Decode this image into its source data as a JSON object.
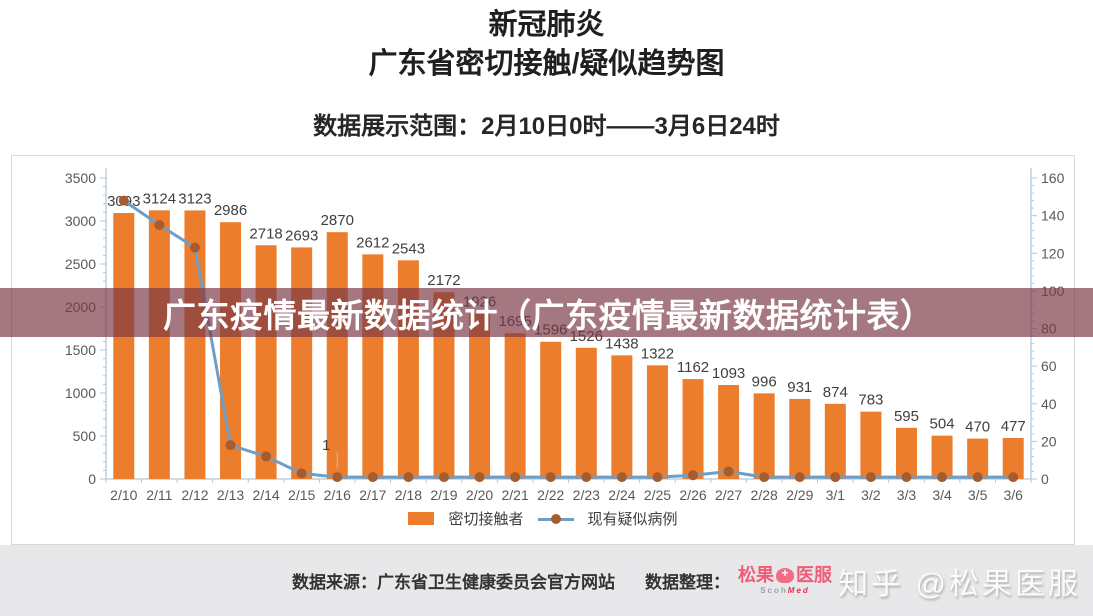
{
  "header": {
    "title_line1": "新冠肺炎",
    "title_line2": "广东省密切接触/疑似趋势图",
    "subtitle": "数据展示范围：2月10日0时——3月6日24时"
  },
  "banner": {
    "text": "广东疫情最新数据统计（广东疫情最新数据统计表）",
    "bg_color": "#7A3644",
    "text_color": "#FFFFFF"
  },
  "chart_data": {
    "type": "bar",
    "subtype": "bar+line combo",
    "categories": [
      "2/10",
      "2/11",
      "2/12",
      "2/13",
      "2/14",
      "2/15",
      "2/16",
      "2/17",
      "2/18",
      "2/19",
      "2/20",
      "2/21",
      "2/22",
      "2/23",
      "2/24",
      "2/25",
      "2/26",
      "2/27",
      "2/28",
      "2/29",
      "3/1",
      "3/2",
      "3/3",
      "3/4",
      "3/5",
      "3/6"
    ],
    "series": [
      {
        "name": "密切接触者",
        "type": "bar",
        "axis": "left",
        "color": "#EC7D2D",
        "values": [
          3093,
          3124,
          3123,
          2986,
          2718,
          2693,
          2870,
          2612,
          2543,
          2172,
          1926,
          1695,
          1596,
          1526,
          1438,
          1322,
          1162,
          1093,
          996,
          931,
          874,
          783,
          595,
          504,
          470,
          477
        ],
        "labels_visible": true
      },
      {
        "name": "现有疑似病例",
        "type": "line",
        "axis": "right",
        "color": "#6E9EC8",
        "marker_color": "#A75C2E",
        "values": [
          148,
          135,
          123,
          18,
          12,
          3,
          1,
          1,
          1,
          1,
          1,
          1,
          1,
          1,
          1,
          1,
          2,
          4,
          1,
          1,
          1,
          1,
          1,
          1,
          1,
          1
        ],
        "estimated_from_pixels": true,
        "labeled_point": {
          "category": "2/16",
          "label": "1"
        }
      }
    ],
    "left_axis": {
      "min": 0,
      "max": 3500,
      "major_step": 500,
      "minor_step": 100,
      "tick_labels": [
        "0",
        "500",
        "1000",
        "1500",
        "2000",
        "2500",
        "3000",
        "3500"
      ]
    },
    "right_axis": {
      "min": 0,
      "max": 160,
      "major_step": 20,
      "minor_step": 4,
      "tick_labels": [
        "0",
        "20",
        "40",
        "60",
        "80",
        "100",
        "120",
        "140",
        "160"
      ]
    },
    "grid": false,
    "legend_position": "bottom",
    "label_color": "#404040",
    "axis_color": "#AFC9DE",
    "axis_label_color": "#595959"
  },
  "footer": {
    "source": "数据来源：广东省卫生健康委员会官方网站",
    "credit": "数据整理：",
    "logo": {
      "cn_left": "松果",
      "cn_right": "医服",
      "latin_gray": "Scoh",
      "latin_red": "Med",
      "brand_color": "#EE5D77"
    },
    "watermark": "知乎 @松果医服"
  }
}
